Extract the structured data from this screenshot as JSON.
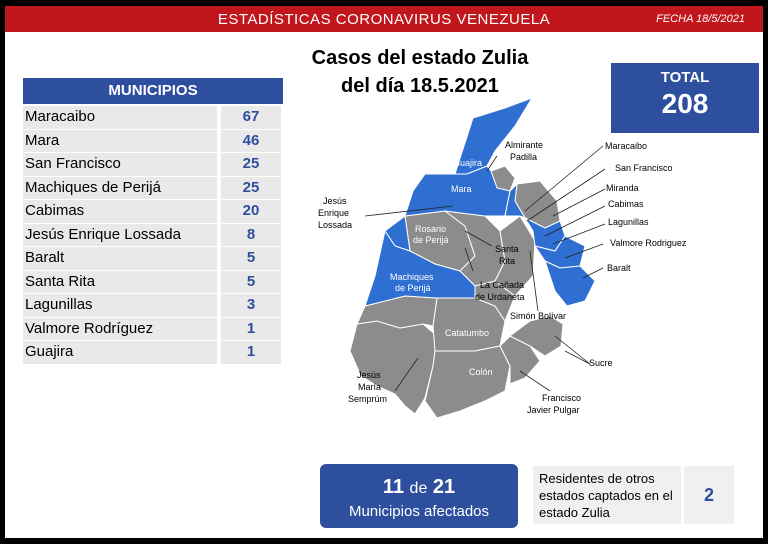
{
  "header": {
    "title": "ESTADÍSTICAS CORONAVIRUS VENEZUELA",
    "date": "FECHA 18/5/2021"
  },
  "map_title": {
    "line1": "Casos del estado Zulia",
    "line2": "del día 18.5.2021"
  },
  "municipios": {
    "heading": "MUNICIPIOS",
    "rows": [
      {
        "name": "Maracaibo",
        "value": "67"
      },
      {
        "name": "Mara",
        "value": "46"
      },
      {
        "name": "San Francisco",
        "value": "25"
      },
      {
        "name": "Machiques de Perijá",
        "value": "25"
      },
      {
        "name": "Cabimas",
        "value": "20"
      },
      {
        "name": "Jesús Enrique Lossada",
        "value": "8"
      },
      {
        "name": "Baralt",
        "value": "5"
      },
      {
        "name": "Santa Rita",
        "value": "5"
      },
      {
        "name": "Lagunillas",
        "value": "3"
      },
      {
        "name": "Valmore Rodríguez",
        "value": "1"
      },
      {
        "name": "Guajira",
        "value": "1"
      }
    ]
  },
  "total": {
    "label": "TOTAL",
    "value": "208"
  },
  "affected": {
    "count": "11",
    "of": "de",
    "total": "21",
    "label": "Municipios afectados"
  },
  "residents": {
    "line1": "Residentes de otros",
    "line2": "estados captados en el",
    "line3": "estado Zulia",
    "value": "2"
  },
  "map_labels": {
    "guajira": "Guajira",
    "mara": "Mara",
    "rosario1": "Rosario",
    "rosario2": "de Perijá",
    "machiques1": "Machiques",
    "machiques2": "de Perijá",
    "catatumbo": "Catatumbo",
    "colon": "Colón",
    "almirante1": "Almirante",
    "almirante2": "Padilla",
    "maracaibo": "Maracaibo",
    "sanfrancisco": "San Francisco",
    "miranda": "Miranda",
    "cabimas": "Cabimas",
    "lagunillas": "Lagunillas",
    "valmore": "Valmore Rodriguez",
    "baralt": "Baralt",
    "jesus_enrique1": "Jesús",
    "jesus_enrique2": "Enrique",
    "jesus_enrique3": "Lossada",
    "santarita1": "Santa",
    "santarita2": "Rita",
    "lacanada1": "La Cañada",
    "lacanada2": "de Urdaneta",
    "simon": "Simón Bolívar",
    "sucre": "Sucre",
    "jesus_maria1": "Jesús",
    "jesus_maria2": "María",
    "jesus_maria3": "Semprúm",
    "francisco1": "Francisco",
    "francisco2": "Javier Pulgar"
  },
  "colors": {
    "affected": "#2e6fd1",
    "unaffected": "#8c8c8c",
    "header": "#c0161c",
    "panel": "#2e4f9e"
  }
}
